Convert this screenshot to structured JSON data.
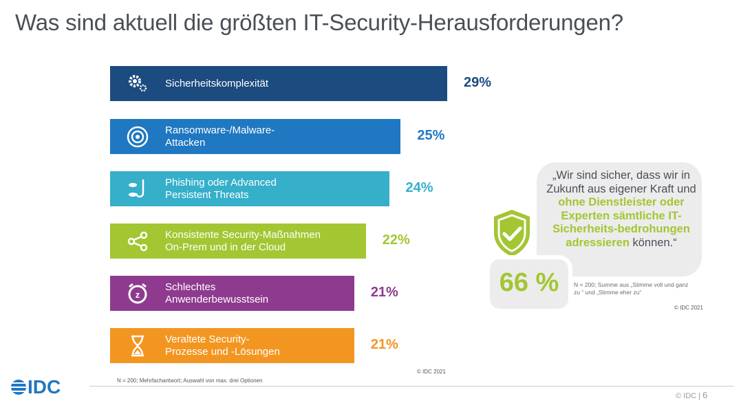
{
  "title": "Was sind aktuell die größten IT-Security-Herausforderungen?",
  "chart_data": {
    "type": "bar",
    "orientation": "horizontal",
    "categories": [
      "Sicherheitskomplexität",
      "Ransomware-/Malware-Attacken",
      "Phishing oder Advanced Persistent Threats",
      "Konsistente Security-Maßnahmen On-Prem und in der Cloud",
      "Schlechtes Anwenderbewusstsein",
      "Veraltete Security-Prozesse und -Lösungen"
    ],
    "values": [
      29,
      25,
      24,
      22,
      21,
      21
    ],
    "value_labels": [
      "29%",
      "25%",
      "24%",
      "22%",
      "21%",
      "21%"
    ],
    "label_lines": [
      [
        "Sicherheitskomplexität"
      ],
      [
        "Ransomware-/Malware-",
        "Attacken"
      ],
      [
        "Phishing oder Advanced",
        "Persistent Threats"
      ],
      [
        "Konsistente Security-Maßnahmen",
        "On-Prem und in der Cloud"
      ],
      [
        "Schlechtes",
        "Anwenderbewusstsein"
      ],
      [
        "Veraltete Security-",
        "Prozesse und -Lösungen"
      ]
    ],
    "colors": [
      "#1b4b7f",
      "#1f78c1",
      "#35afca",
      "#a3c632",
      "#8e3a8f",
      "#f39621"
    ],
    "icons": [
      "gears-icon",
      "target-icon",
      "phishing-hook-icon",
      "share-network-icon",
      "alarm-clock-icon",
      "hourglass-icon"
    ],
    "xlim": [
      0,
      29
    ],
    "grid": false,
    "legend": "none"
  },
  "chart_note": "N = 200; Mehrfachantwort; Auswahl von max. drei Optionen",
  "chart_copyright": "© IDC 2021",
  "callout": {
    "quote_start": "„Wir sind sicher, dass wir in Zukunft aus eigener Kraft und ",
    "quote_highlight": "ohne Dienstleister oder Experten sämtliche IT-Sicherheits-bedrohungen adressieren",
    "quote_end": " können.“",
    "value": "66 %",
    "note": "N = 200; Summe aus „Stimme voll und ganz zu “ und „Stimme eher zu“",
    "copyright": "© IDC 2021",
    "accent": "#a3c632"
  },
  "footer": {
    "logo": "IDC",
    "copyright": "© IDC |",
    "page": "6"
  }
}
